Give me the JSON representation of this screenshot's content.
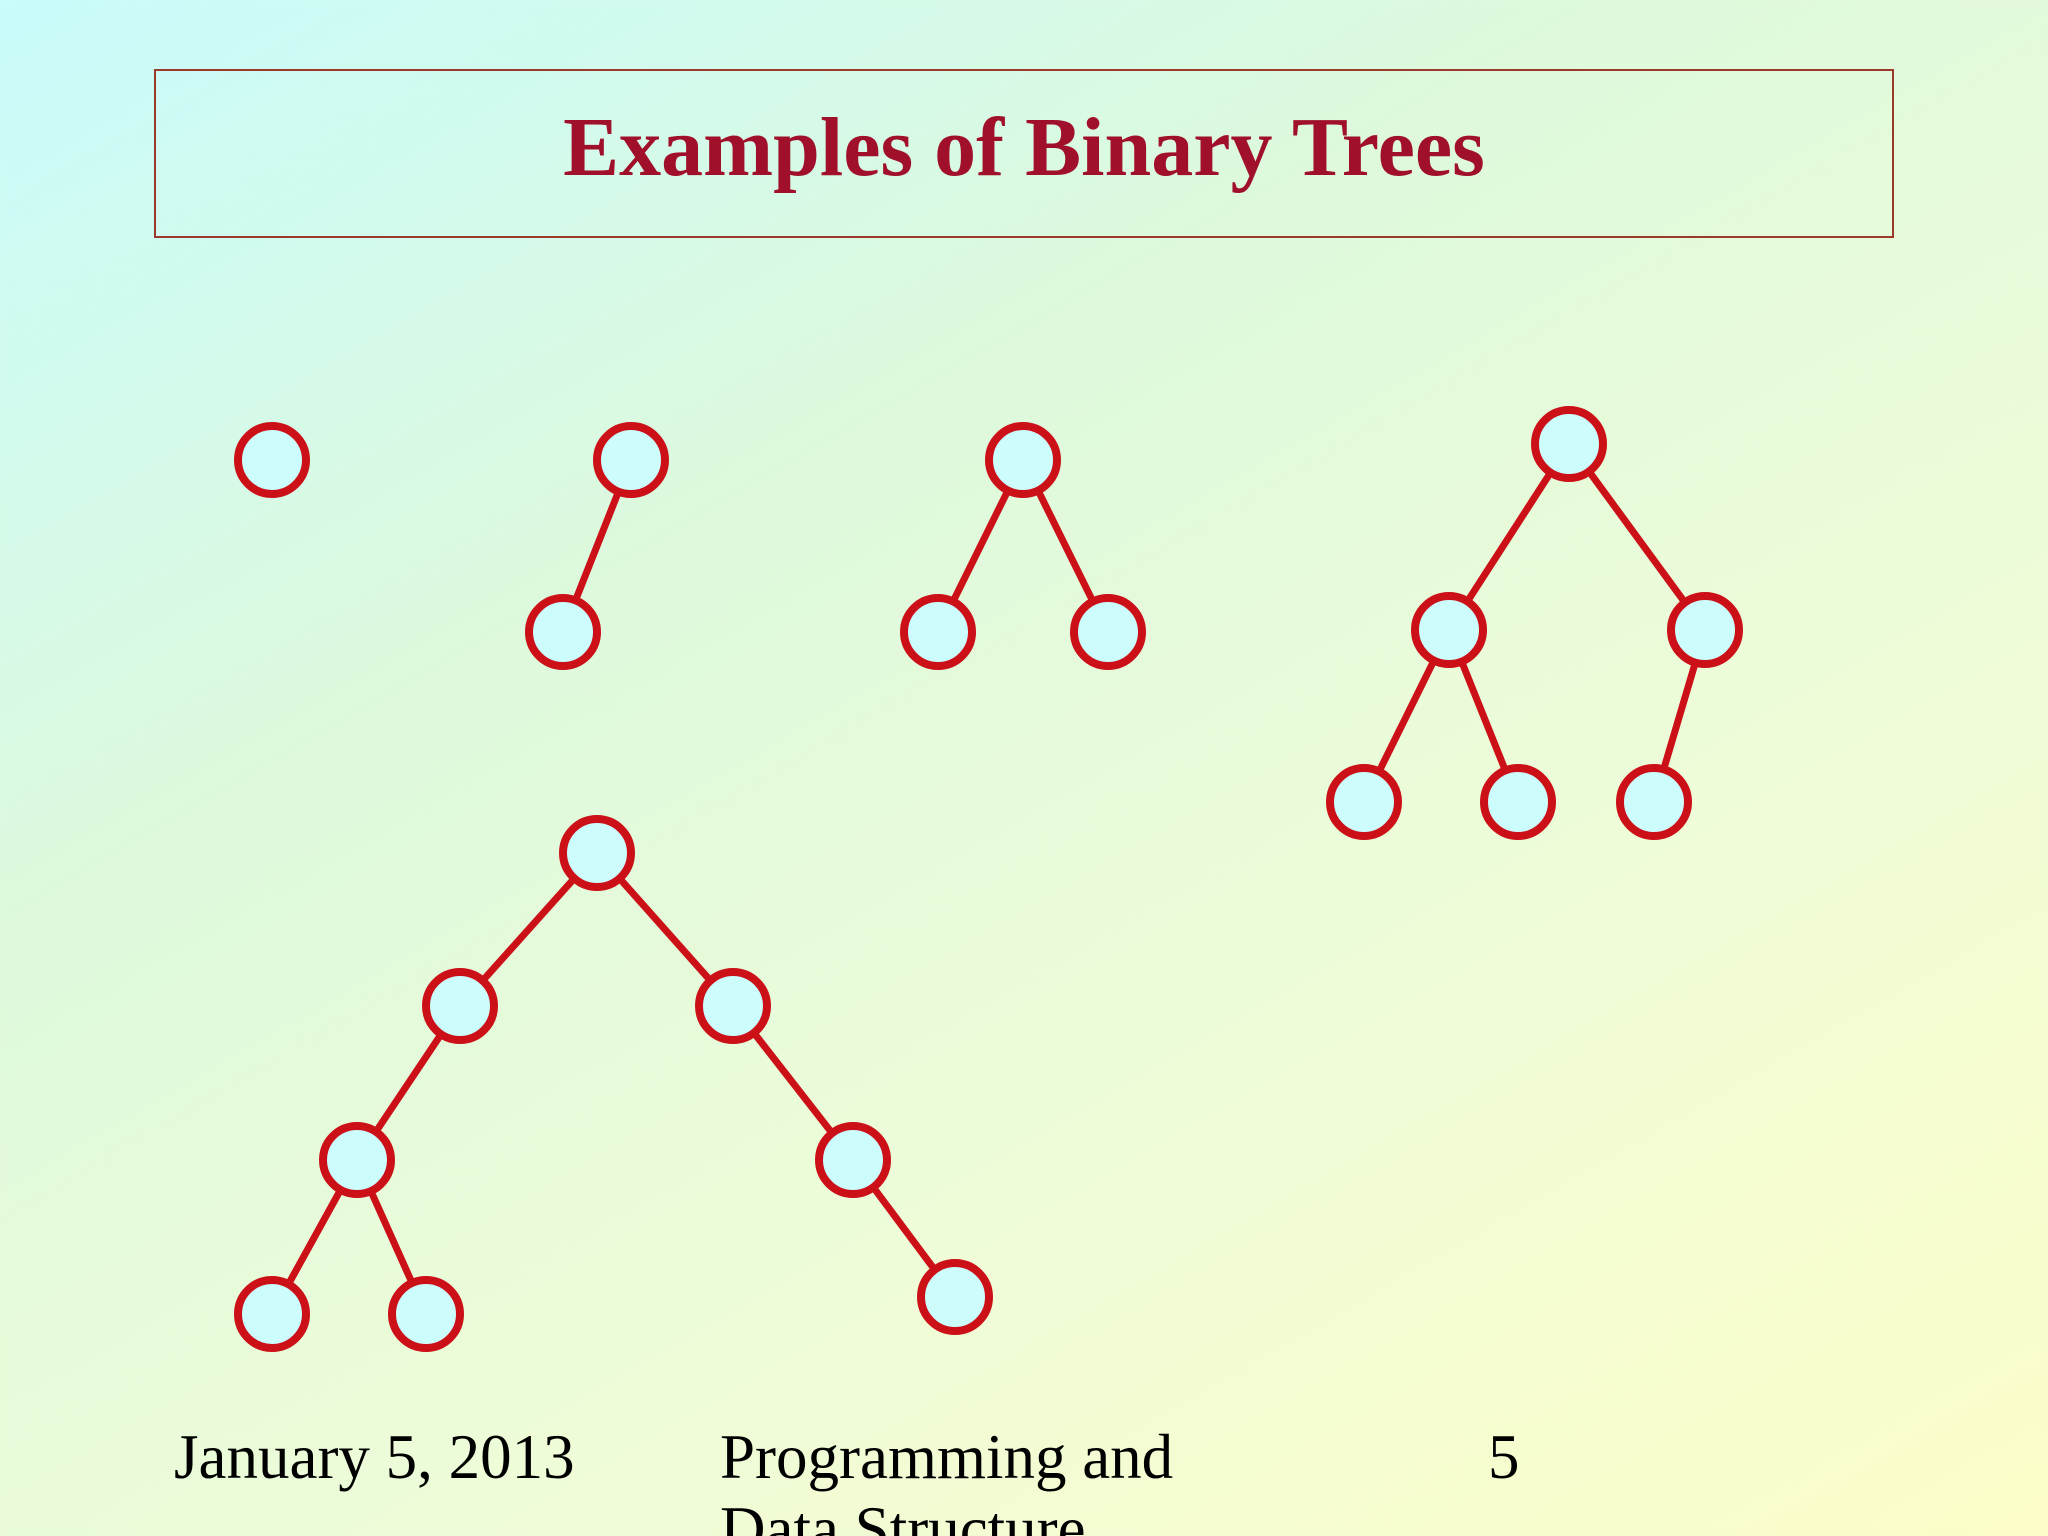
{
  "slide": {
    "title": "Examples of Binary Trees",
    "footer": {
      "date": "January 5, 2013",
      "course_line1": "Programming and",
      "course_line2": "Data Structure",
      "page_number": "5"
    }
  },
  "colors": {
    "title": "#a0102a",
    "node_stroke": "#cc1018",
    "node_fill": "#ccfcfc",
    "title_border": "#9b3a2a"
  },
  "trees": [
    {
      "name": "tree-1-node",
      "nodes": 1,
      "edges": 0
    },
    {
      "name": "tree-2-nodes",
      "nodes": 2,
      "edges": 1
    },
    {
      "name": "tree-3-nodes",
      "nodes": 3,
      "edges": 2
    },
    {
      "name": "tree-6-nodes",
      "nodes": 6,
      "edges": 5
    },
    {
      "name": "tree-8-nodes",
      "nodes": 8,
      "edges": 7
    }
  ]
}
